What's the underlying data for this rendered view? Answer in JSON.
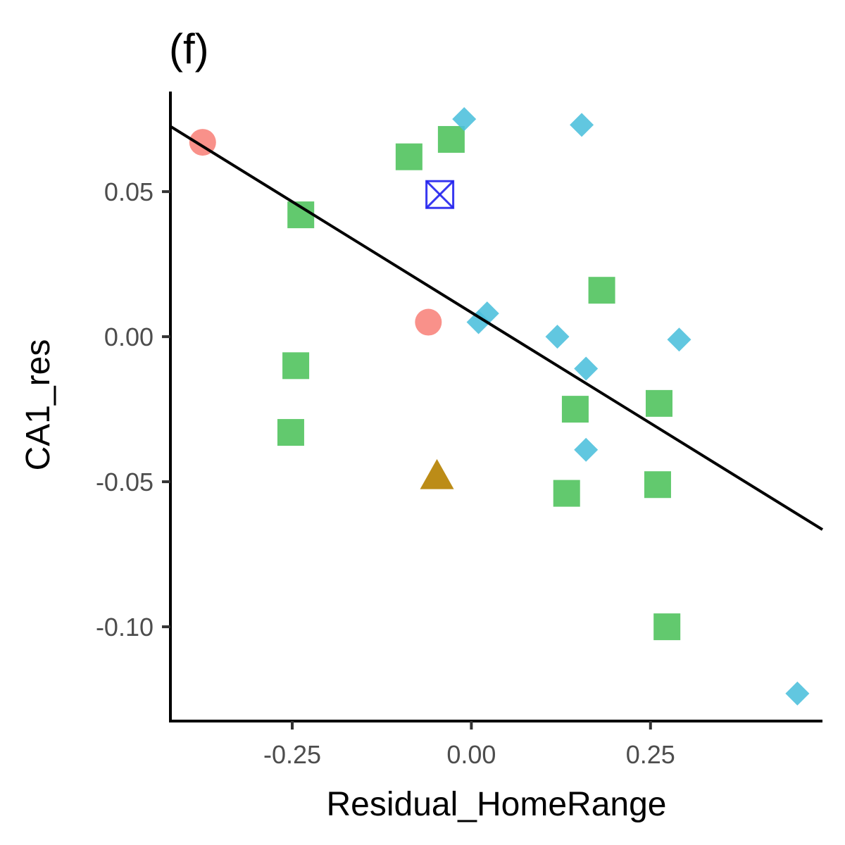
{
  "chart_data": {
    "type": "scatter",
    "title": "(f)",
    "xlabel": "Residual_HomeRange",
    "ylabel": "CA1_res",
    "xlim": [
      -0.42,
      0.49
    ],
    "ylim": [
      -0.1325,
      0.0845
    ],
    "x_ticks": [
      {
        "value": -0.25,
        "label": "-0.25"
      },
      {
        "value": 0.0,
        "label": "0.00"
      },
      {
        "value": 0.25,
        "label": "0.25"
      }
    ],
    "y_ticks": [
      {
        "value": 0.05,
        "label": "0.05"
      },
      {
        "value": 0.0,
        "label": "0.00"
      },
      {
        "value": -0.05,
        "label": "-0.05"
      },
      {
        "value": -0.1,
        "label": "-0.10"
      }
    ],
    "grid": false,
    "legend": "none",
    "series": [
      {
        "shape": "circle",
        "color": "#F8766D",
        "points": [
          {
            "x": -0.375,
            "y": 0.067
          },
          {
            "x": -0.06,
            "y": 0.005
          }
        ]
      },
      {
        "shape": "triangle",
        "color": "#B8860B",
        "points": [
          {
            "x": -0.048,
            "y": -0.048
          }
        ]
      },
      {
        "shape": "square",
        "color": "#4CC25A",
        "points": [
          {
            "x": -0.087,
            "y": 0.062
          },
          {
            "x": -0.028,
            "y": 0.068
          },
          {
            "x": -0.238,
            "y": 0.042
          },
          {
            "x": 0.182,
            "y": 0.016
          },
          {
            "x": -0.245,
            "y": -0.01
          },
          {
            "x": -0.252,
            "y": -0.033
          },
          {
            "x": 0.145,
            "y": -0.025
          },
          {
            "x": 0.262,
            "y": -0.023
          },
          {
            "x": 0.133,
            "y": -0.054
          },
          {
            "x": 0.26,
            "y": -0.051
          },
          {
            "x": 0.273,
            "y": -0.1
          }
        ]
      },
      {
        "shape": "diamond",
        "color": "#4BBFDC",
        "points": [
          {
            "x": -0.01,
            "y": 0.075
          },
          {
            "x": 0.154,
            "y": 0.073
          },
          {
            "x": 0.01,
            "y": 0.005
          },
          {
            "x": 0.022,
            "y": 0.008
          },
          {
            "x": 0.12,
            "y": 0.0
          },
          {
            "x": 0.16,
            "y": -0.011
          },
          {
            "x": 0.29,
            "y": -0.001
          },
          {
            "x": 0.16,
            "y": -0.039
          },
          {
            "x": 0.455,
            "y": -0.123
          }
        ]
      },
      {
        "shape": "square-x",
        "color": "#2222EE",
        "points": [
          {
            "x": -0.044,
            "y": 0.049
          }
        ]
      }
    ],
    "fit_line": {
      "color": "#000000",
      "x": [
        -0.42,
        0.49
      ],
      "y": [
        0.0725,
        -0.0665
      ]
    }
  }
}
